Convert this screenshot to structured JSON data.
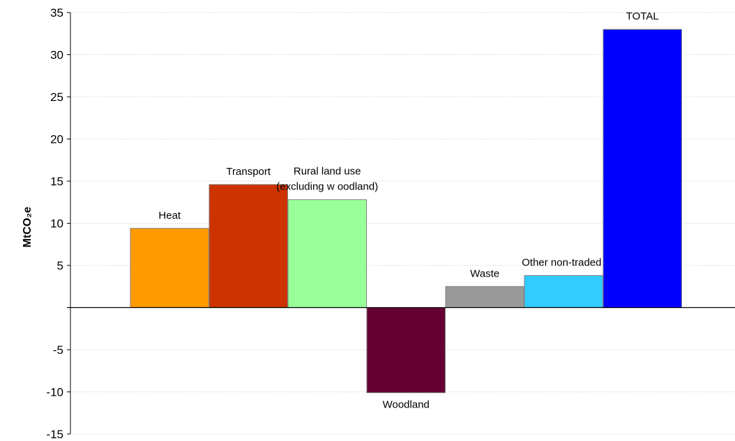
{
  "chart_data": {
    "type": "bar",
    "title": "",
    "xlabel": "",
    "ylabel": "MtCO₂e",
    "ylim": [
      -15,
      35
    ],
    "yticks": [
      35,
      30,
      25,
      20,
      15,
      10,
      5,
      -5,
      -10,
      -15
    ],
    "grid": true,
    "legend": "none",
    "categories": [
      "Heat",
      "Transport",
      "Rural land use (excluding w oodland)",
      "Woodland",
      "Waste",
      "Other non-traded",
      "TOTAL"
    ],
    "values": [
      9.4,
      14.6,
      12.8,
      -10.1,
      2.5,
      3.8,
      33.0
    ],
    "colors": [
      "#FF9900",
      "#CC3300",
      "#99FF99",
      "#660033",
      "#999999",
      "#33CCFF",
      "#0000FF"
    ],
    "label_lines": [
      [
        "Heat"
      ],
      [
        "Transport"
      ],
      [
        "Rural land use",
        "(excluding w oodland)"
      ],
      [
        "Woodland"
      ],
      [
        "Waste"
      ],
      [
        "Other non-traded"
      ],
      [
        "TOTAL"
      ]
    ]
  }
}
